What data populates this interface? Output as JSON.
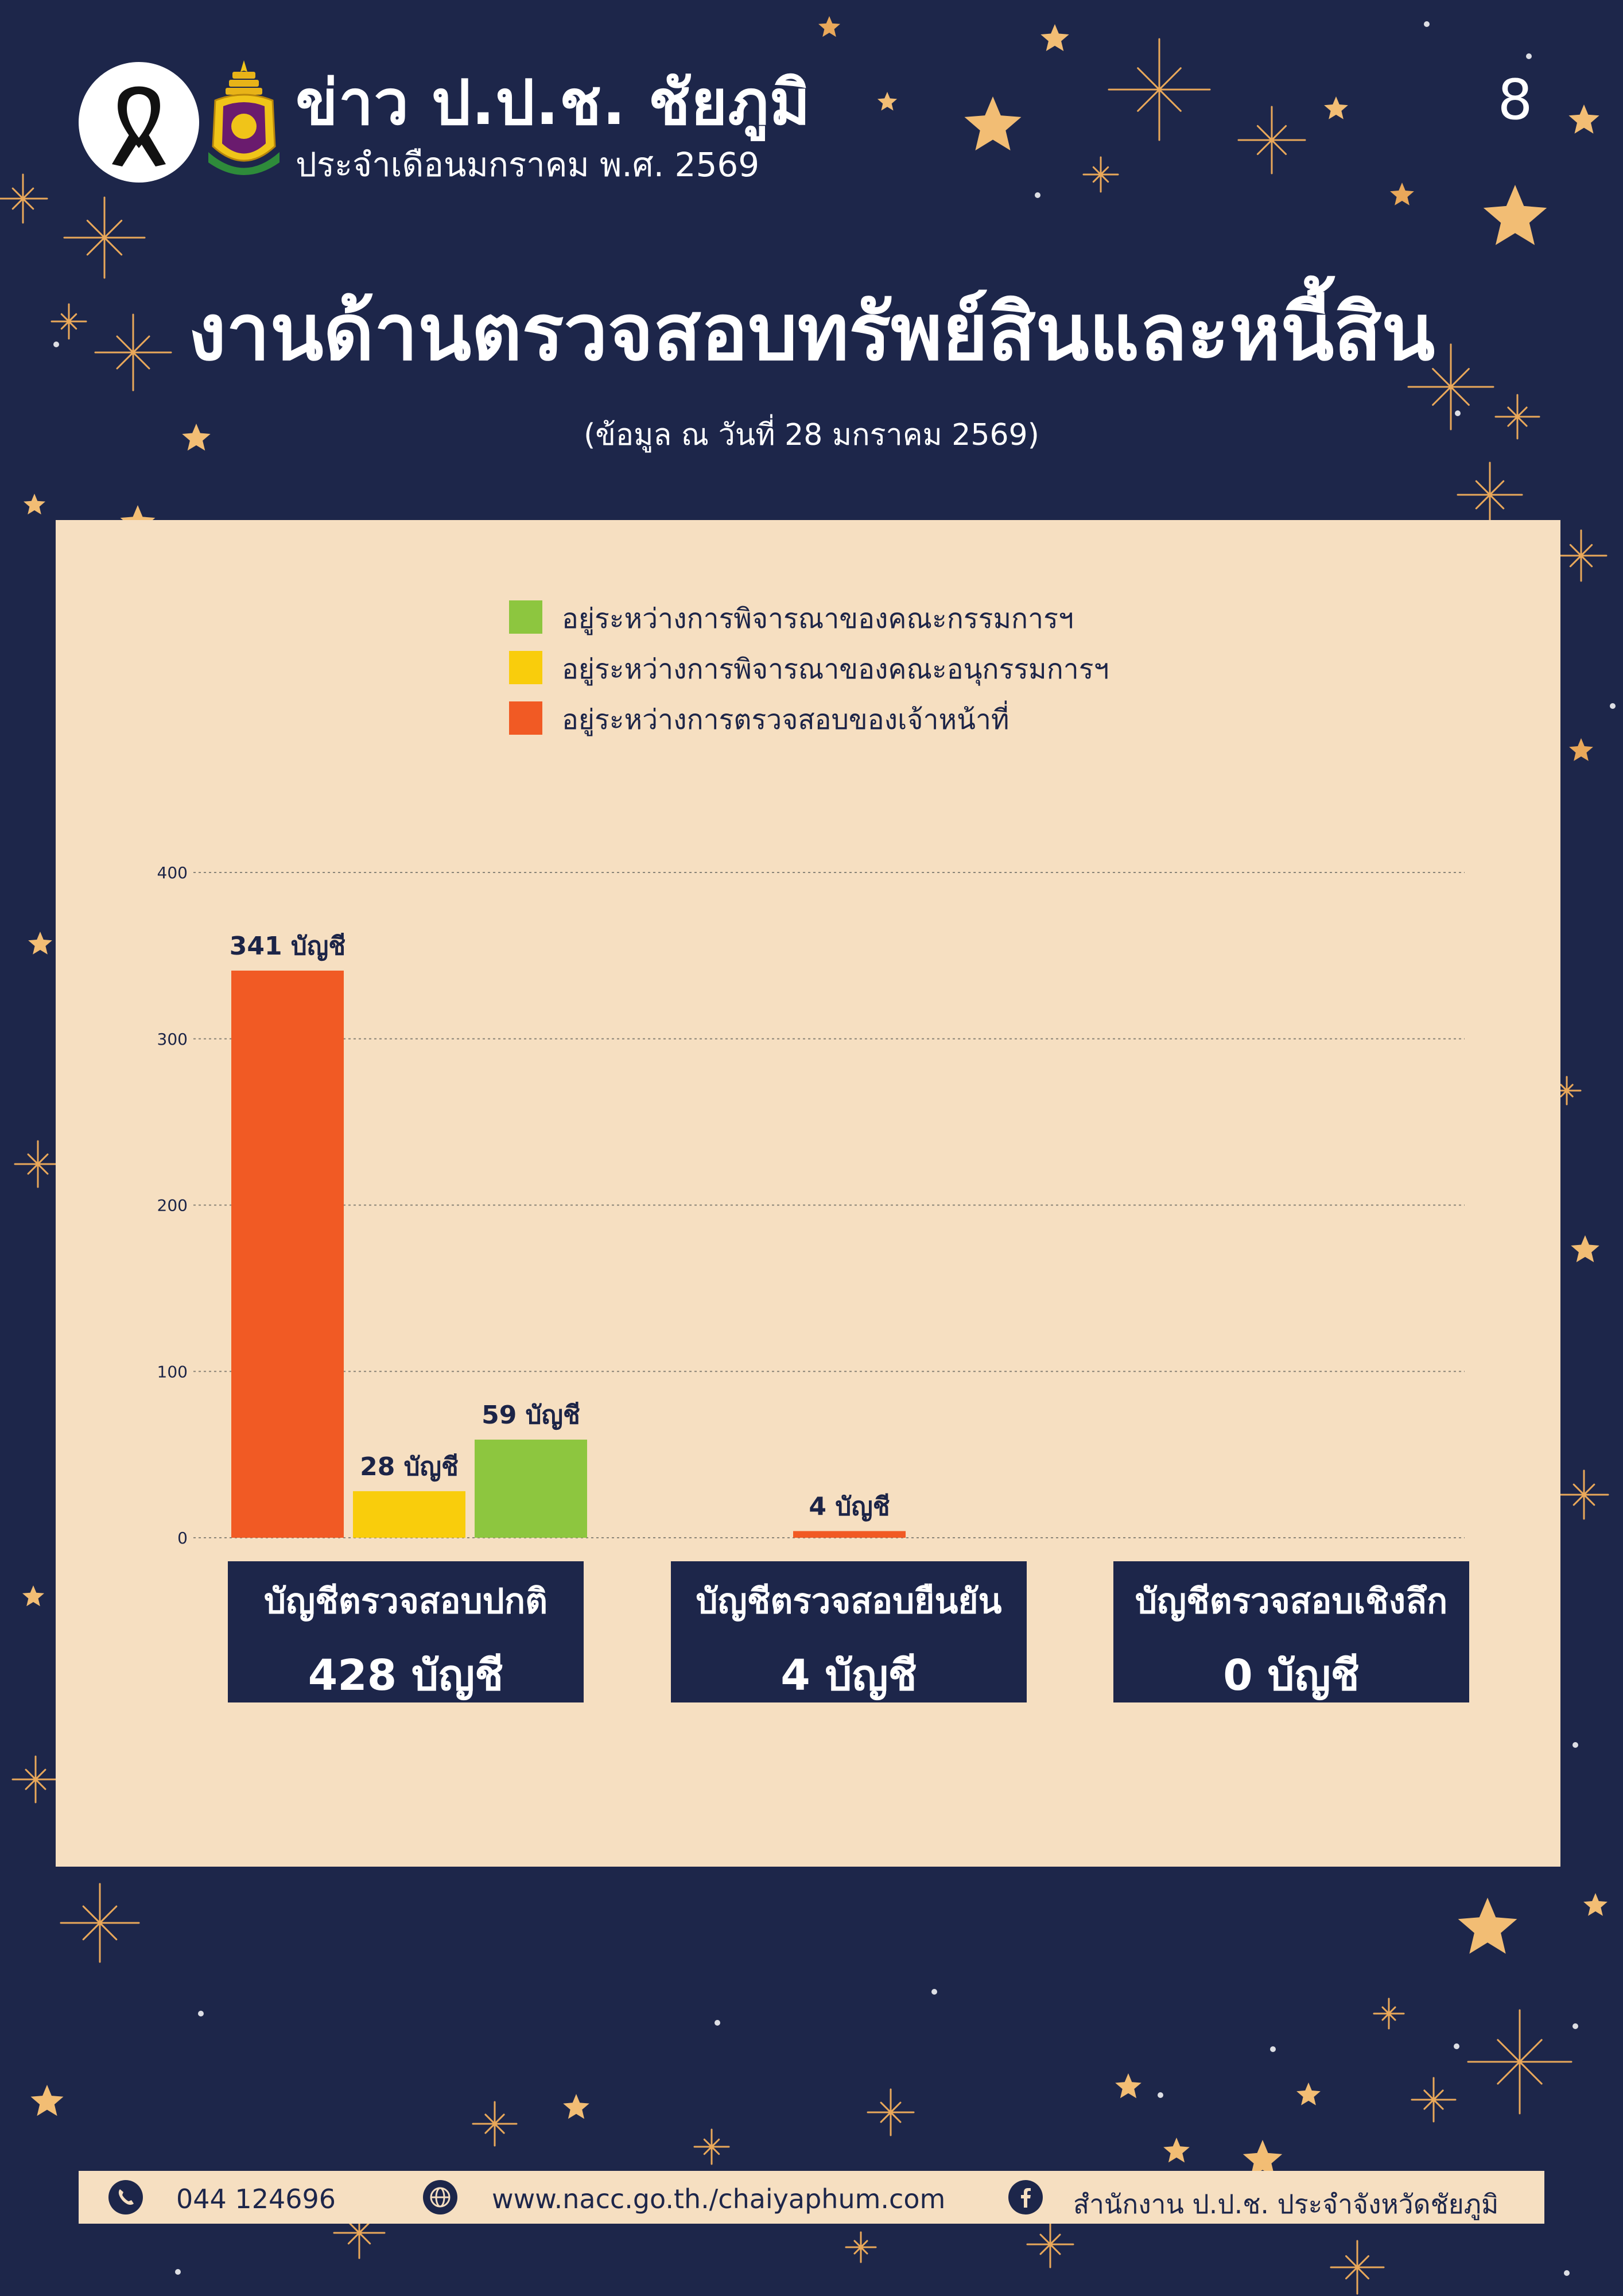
{
  "header": {
    "title": "ข่าว ป.ป.ช. ชัยภูมิ",
    "subtitle": "ประจำเดือนมกราคม พ.ศ. 2569",
    "page_number": "8"
  },
  "main_title": "งานด้านตรวจสอบทรัพย์สินและหนี้สิน",
  "as_of_note": "(ข้อมูล ณ วันที่ 28 มกราคม 2569)",
  "colors": {
    "background": "#1d264a",
    "panel": "#f6dfc1",
    "committee": "#8dc63f",
    "subcommittee": "#f9cd0c",
    "officer": "#f15a24"
  },
  "legend": [
    {
      "label": "อยู่ระหว่างการพิจารณาของคณะกรรมการฯ",
      "color": "#8dc63f"
    },
    {
      "label": "อยู่ระหว่างการพิจารณาของคณะอนุกรรมการฯ",
      "color": "#f9cd0c"
    },
    {
      "label": "อยู่ระหว่างการตรวจสอบของเจ้าหน้าที่",
      "color": "#f15a24"
    }
  ],
  "categories": [
    {
      "title": "บัญชีตรวจสอบปกติ",
      "total": "428 บัญชี"
    },
    {
      "title": "บัญชีตรวจสอบยืนยัน",
      "total": "4 บัญชี"
    },
    {
      "title": "บัญชีตรวจสอบเชิงลึก",
      "total": "0 บัญชี"
    }
  ],
  "chart_data": {
    "type": "bar",
    "categories": [
      "บัญชีตรวจสอบปกติ",
      "บัญชีตรวจสอบยืนยัน",
      "บัญชีตรวจสอบเชิงลึก"
    ],
    "series": [
      {
        "name": "อยู่ระหว่างการตรวจสอบของเจ้าหน้าที่",
        "color": "#f15a24",
        "values": [
          341,
          4,
          0
        ],
        "labels": [
          "341 บัญชี",
          "4 บัญชี",
          ""
        ]
      },
      {
        "name": "อยู่ระหว่างการพิจารณาของคณะอนุกรรมการฯ",
        "color": "#f9cd0c",
        "values": [
          28,
          0,
          0
        ],
        "labels": [
          "28 บัญชี",
          "",
          ""
        ]
      },
      {
        "name": "อยู่ระหว่างการพิจารณาของคณะกรรมการฯ",
        "color": "#8dc63f",
        "values": [
          59,
          0,
          0
        ],
        "labels": [
          "59 บัญชี",
          "",
          ""
        ]
      }
    ],
    "y_ticks": [
      "0",
      "100",
      "200",
      "300",
      "400"
    ],
    "ylim": [
      0,
      400
    ],
    "grid": true,
    "legend_position": "top"
  },
  "footer": {
    "phone": "044 124696",
    "website": "www.nacc.go.th./chaiyaphum.com",
    "facebook": "สำนักงาน ป.ป.ช. ประจำจังหวัดชัยภูมิ"
  }
}
